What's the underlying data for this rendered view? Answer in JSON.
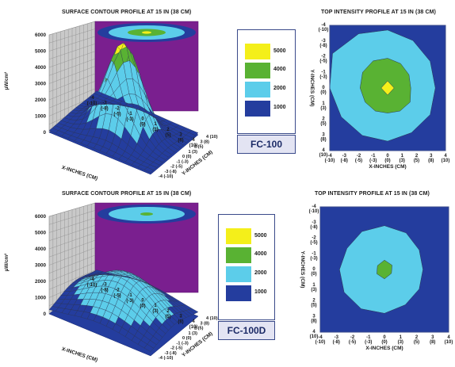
{
  "colors": {
    "level_0": "#243d9e",
    "level_1000": "#5ccdea",
    "level_2000": "#5ccdea",
    "level_4000": "#59b233",
    "level_5000": "#f4ef1a",
    "wall_left": "#c9c9c9",
    "wall_back": "#7a1f8f",
    "grid": "#555555",
    "frame": "#3a4a8a"
  },
  "chart_data": [
    {
      "type": "surface",
      "title": "SURFACE CONTOUR PROFILE AT 15 IN (38 CM)",
      "zlabel": "µW/cm²",
      "zticks": [
        "0",
        "1000",
        "2000",
        "3000",
        "4000",
        "5000",
        "6000"
      ],
      "zlim": [
        0,
        6000
      ],
      "xlabel": "X-INCHES (CM)",
      "ylabel": "Y-INCHES (CM)",
      "xticks": [
        [
          "-4",
          "(-10)"
        ],
        [
          "-3",
          "(-8)"
        ],
        [
          "-2",
          "(-5)"
        ],
        [
          "-1",
          "(-3)"
        ],
        [
          "0",
          "(0)"
        ],
        [
          "1",
          "(3)"
        ],
        [
          "2",
          "(5)"
        ],
        [
          "3",
          "(8)"
        ],
        [
          "4",
          "(10)"
        ]
      ],
      "yticks": [
        [
          "-4",
          "(-10)"
        ],
        [
          "-3",
          "(-8)"
        ],
        [
          "-2",
          "(-5)"
        ],
        [
          "-1",
          "(-3)"
        ],
        [
          "0",
          "(0)"
        ],
        [
          "1",
          "(3)"
        ],
        [
          "2",
          "(5)"
        ],
        [
          "3",
          "(8)"
        ],
        [
          "4",
          "(10)"
        ]
      ],
      "peak": 5700,
      "falloff": 1.3
    },
    {
      "type": "heatmap",
      "title": "TOP INTENSITY PROFILE AT 15 IN (38 CM)",
      "xlabel": "X-INCHES (CM)",
      "ylabel": "Y-INCHES (CM)",
      "xticks": [
        [
          "-4",
          "(-10)"
        ],
        [
          "-3",
          "(-8)"
        ],
        [
          "-2",
          "(-5)"
        ],
        [
          "-1",
          "(-3)"
        ],
        [
          "0",
          "(0)"
        ],
        [
          "1",
          "(3)"
        ],
        [
          "2",
          "(5)"
        ],
        [
          "3",
          "(8)"
        ],
        [
          "4",
          "(10)"
        ]
      ],
      "yticks": [
        [
          "-4",
          "(-10)"
        ],
        [
          "-3",
          "(-8)"
        ],
        [
          "-2",
          "(-5)"
        ],
        [
          "-1",
          "(-3)"
        ],
        [
          "0",
          "(0)"
        ],
        [
          "1",
          "(3)"
        ],
        [
          "2",
          "(5)"
        ],
        [
          "3",
          "(8)"
        ],
        [
          "4",
          "(10)"
        ]
      ],
      "contours": [
        {
          "level": 1000,
          "radii_in": [
            3.7,
            3.5,
            3.4,
            3.3,
            3.4,
            3.3,
            3.4,
            3.5,
            3.7,
            4.0,
            4.4,
            4.0
          ]
        },
        {
          "level": 4000,
          "radii_in": [
            1.9,
            1.8,
            1.7,
            1.6,
            1.8,
            1.7,
            1.6,
            1.7,
            1.8,
            1.9,
            2.0,
            2.0
          ]
        },
        {
          "level": 5000,
          "radii_in": [
            0.45,
            0.45,
            0.45,
            0.45
          ]
        }
      ]
    },
    {
      "type": "legend",
      "levels": [
        "5000",
        "4000",
        "2000",
        "1000"
      ],
      "model": "FC-100"
    },
    {
      "type": "surface",
      "title": "SURFACE CONTOUR PROFILE AT 15 IN (38 CM)",
      "zlabel": "µW/cm²",
      "zticks": [
        "0",
        "1000",
        "2000",
        "3000",
        "4000",
        "5000",
        "6000"
      ],
      "zlim": [
        0,
        6000
      ],
      "xlabel": "X-INCHES (CM)",
      "ylabel": "Y-INCHES (CM)",
      "xticks": [
        [
          "-4",
          "(-10)"
        ],
        [
          "-3",
          "(-8)"
        ],
        [
          "-2",
          "(-5)"
        ],
        [
          "-1",
          "(-3)"
        ],
        [
          "0",
          "(0)"
        ],
        [
          "1",
          "(3)"
        ],
        [
          "2",
          "(5)"
        ],
        [
          "3",
          "(8)"
        ],
        [
          "4",
          "(10)"
        ]
      ],
      "yticks": [
        [
          "-4",
          "(-10)"
        ],
        [
          "-3",
          "(-8)"
        ],
        [
          "-2",
          "(-5)"
        ],
        [
          "-1",
          "(-3)"
        ],
        [
          "0",
          "(0)"
        ],
        [
          "1",
          "(3)"
        ],
        [
          "2",
          "(5)"
        ],
        [
          "3",
          "(8)"
        ],
        [
          "4",
          "(10)"
        ]
      ],
      "peak": 2500,
      "falloff": 2.4
    },
    {
      "type": "heatmap",
      "title": "TOP INTENSITY PROFILE AT 15 IN (38 CM)",
      "xlabel": "X-INCHES (CM)",
      "ylabel": "Y-INCHES (CM)",
      "xticks": [
        [
          "-4",
          "(-10)"
        ],
        [
          "-3",
          "(-8)"
        ],
        [
          "-2",
          "(-5)"
        ],
        [
          "-1",
          "(-3)"
        ],
        [
          "0",
          "(0)"
        ],
        [
          "1",
          "(3)"
        ],
        [
          "2",
          "(5)"
        ],
        [
          "3",
          "(8)"
        ],
        [
          "4",
          "(10)"
        ]
      ],
      "yticks": [
        [
          "-4",
          "(-10)"
        ],
        [
          "-3",
          "(-8)"
        ],
        [
          "-2",
          "(-5)"
        ],
        [
          "-1",
          "(-3)"
        ],
        [
          "0",
          "(0)"
        ],
        [
          "1",
          "(3)"
        ],
        [
          "2",
          "(5)"
        ],
        [
          "3",
          "(8)"
        ],
        [
          "4",
          "(10)"
        ]
      ],
      "contours": [
        {
          "level": 1000,
          "radii_in": [
            2.8,
            2.7,
            2.5,
            2.4,
            2.5,
            2.6,
            2.8,
            2.9,
            2.9,
            2.8,
            2.7,
            2.8
          ]
        },
        {
          "level": 4000,
          "radii_in": [
            0.6,
            0.55,
            0.5,
            0.6,
            0.55,
            0.5
          ]
        }
      ]
    },
    {
      "type": "legend",
      "levels": [
        "5000",
        "4000",
        "2000",
        "1000"
      ],
      "model": "FC-100D"
    }
  ]
}
